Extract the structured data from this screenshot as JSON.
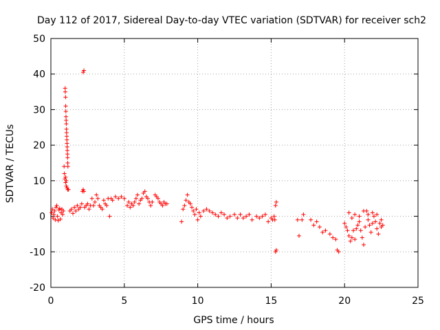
{
  "chart_data": {
    "type": "scatter",
    "title": "Day 112 of 2017, Sidereal Day-to-day VTEC variation (SDTVAR) for receiver sch2",
    "xlabel": "GPS time / hours",
    "ylabel": "SDTVAR / TECUs",
    "xlim": [
      0,
      25
    ],
    "ylim": [
      -20,
      50
    ],
    "xticks": [
      0,
      5,
      10,
      15,
      20,
      25
    ],
    "yticks": [
      -20,
      -10,
      0,
      10,
      20,
      30,
      40,
      50
    ],
    "xtick_labels": [
      "0",
      "5",
      "10",
      "15",
      "20",
      "25"
    ],
    "ytick_labels": [
      "-20",
      "-10",
      "0",
      "10",
      "20",
      "30",
      "40",
      "50"
    ],
    "grid": true,
    "marker": "plus",
    "series": [
      {
        "name": "SDTVAR",
        "color": "#ff0000",
        "points": [
          [
            0.05,
            1.0
          ],
          [
            0.1,
            2.0
          ],
          [
            0.15,
            -0.5
          ],
          [
            0.2,
            0.5
          ],
          [
            0.25,
            1.5
          ],
          [
            0.3,
            -1.0
          ],
          [
            0.35,
            2.5
          ],
          [
            0.4,
            3.0
          ],
          [
            0.45,
            0.0
          ],
          [
            0.5,
            -1.2
          ],
          [
            0.55,
            1.8
          ],
          [
            0.6,
            2.2
          ],
          [
            0.65,
            -0.8
          ],
          [
            0.7,
            1.0
          ],
          [
            0.75,
            2.0
          ],
          [
            0.8,
            0.5
          ],
          [
            0.85,
            1.5
          ],
          [
            0.9,
            14.0
          ],
          [
            0.92,
            12.0
          ],
          [
            0.95,
            10.5
          ],
          [
            0.97,
            36.0
          ],
          [
            0.98,
            35.0
          ],
          [
            1.0,
            33.5
          ],
          [
            1.01,
            31.0
          ],
          [
            1.02,
            29.5
          ],
          [
            1.03,
            28.0
          ],
          [
            1.04,
            27.0
          ],
          [
            1.05,
            26.0
          ],
          [
            1.06,
            24.5
          ],
          [
            1.07,
            23.5
          ],
          [
            1.08,
            22.5
          ],
          [
            1.09,
            21.5
          ],
          [
            1.1,
            20.5
          ],
          [
            1.11,
            19.5
          ],
          [
            1.12,
            18.5
          ],
          [
            1.13,
            17.5
          ],
          [
            1.14,
            16.5
          ],
          [
            1.15,
            15.0
          ],
          [
            1.16,
            14.0
          ],
          [
            1.0,
            9.5
          ],
          [
            1.05,
            8.5
          ],
          [
            1.1,
            8.0
          ],
          [
            1.15,
            7.5
          ],
          [
            1.2,
            7.5
          ],
          [
            1.0,
            11.0
          ],
          [
            1.05,
            10.0
          ],
          [
            1.3,
            1.5
          ],
          [
            1.4,
            2.0
          ],
          [
            1.5,
            0.8
          ],
          [
            1.6,
            2.5
          ],
          [
            1.7,
            1.5
          ],
          [
            1.8,
            3.0
          ],
          [
            1.9,
            2.0
          ],
          [
            2.0,
            2.5
          ],
          [
            2.1,
            3.5
          ],
          [
            2.15,
            7.0
          ],
          [
            2.2,
            7.5
          ],
          [
            2.25,
            7.0
          ],
          [
            2.2,
            40.5
          ],
          [
            2.25,
            41.0
          ],
          [
            2.3,
            2.5
          ],
          [
            2.4,
            3.0
          ],
          [
            2.5,
            3.5
          ],
          [
            2.6,
            2.0
          ],
          [
            2.7,
            3.0
          ],
          [
            2.8,
            5.0
          ],
          [
            2.9,
            3.0
          ],
          [
            3.0,
            4.0
          ],
          [
            3.1,
            6.0
          ],
          [
            3.2,
            5.0
          ],
          [
            3.3,
            3.0
          ],
          [
            3.4,
            2.5
          ],
          [
            3.5,
            2.0
          ],
          [
            3.6,
            4.5
          ],
          [
            3.7,
            3.5
          ],
          [
            3.8,
            3.0
          ],
          [
            3.9,
            5.0
          ],
          [
            4.0,
            0.0
          ],
          [
            4.1,
            5.0
          ],
          [
            4.2,
            4.5
          ],
          [
            4.4,
            5.5
          ],
          [
            4.6,
            5.0
          ],
          [
            4.8,
            5.5
          ],
          [
            5.0,
            5.0
          ],
          [
            5.2,
            3.0
          ],
          [
            5.3,
            4.0
          ],
          [
            5.4,
            2.5
          ],
          [
            5.5,
            3.5
          ],
          [
            5.6,
            3.0
          ],
          [
            5.7,
            4.0
          ],
          [
            5.8,
            5.0
          ],
          [
            5.9,
            6.0
          ],
          [
            6.0,
            3.5
          ],
          [
            6.1,
            4.5
          ],
          [
            6.2,
            5.0
          ],
          [
            6.3,
            6.5
          ],
          [
            6.4,
            7.0
          ],
          [
            6.5,
            5.5
          ],
          [
            6.6,
            5.0
          ],
          [
            6.7,
            4.0
          ],
          [
            6.8,
            3.0
          ],
          [
            6.9,
            4.0
          ],
          [
            7.1,
            6.0
          ],
          [
            7.2,
            5.5
          ],
          [
            7.3,
            5.0
          ],
          [
            7.4,
            4.0
          ],
          [
            7.5,
            3.5
          ],
          [
            7.6,
            3.0
          ],
          [
            7.7,
            4.0
          ],
          [
            7.8,
            3.5
          ],
          [
            7.9,
            3.5
          ],
          [
            8.9,
            -1.5
          ],
          [
            9.0,
            2.0
          ],
          [
            9.1,
            3.0
          ],
          [
            9.2,
            4.5
          ],
          [
            9.3,
            6.0
          ],
          [
            9.4,
            4.0
          ],
          [
            9.5,
            3.5
          ],
          [
            9.6,
            2.5
          ],
          [
            9.7,
            1.5
          ],
          [
            9.8,
            0.5
          ],
          [
            9.9,
            2.0
          ],
          [
            10.0,
            -1.0
          ],
          [
            10.1,
            1.0
          ],
          [
            10.2,
            0.0
          ],
          [
            10.4,
            1.5
          ],
          [
            10.6,
            2.0
          ],
          [
            10.8,
            1.5
          ],
          [
            11.0,
            1.0
          ],
          [
            11.2,
            0.5
          ],
          [
            11.4,
            0.0
          ],
          [
            11.6,
            1.0
          ],
          [
            11.8,
            0.5
          ],
          [
            12.0,
            -0.5
          ],
          [
            12.2,
            0.0
          ],
          [
            12.5,
            0.5
          ],
          [
            12.7,
            -0.5
          ],
          [
            12.9,
            0.5
          ],
          [
            13.1,
            -0.5
          ],
          [
            13.3,
            0.0
          ],
          [
            13.5,
            0.5
          ],
          [
            13.7,
            -1.0
          ],
          [
            14.0,
            0.0
          ],
          [
            14.2,
            -0.5
          ],
          [
            14.4,
            0.0
          ],
          [
            14.6,
            0.5
          ],
          [
            14.8,
            -1.5
          ],
          [
            15.0,
            -0.5
          ],
          [
            15.1,
            -1.0
          ],
          [
            15.2,
            0.0
          ],
          [
            15.25,
            -1.0
          ],
          [
            15.3,
            3.0
          ],
          [
            15.35,
            4.0
          ],
          [
            15.3,
            -10.0
          ],
          [
            15.35,
            -9.5
          ],
          [
            16.8,
            -1.0
          ],
          [
            16.9,
            -5.5
          ],
          [
            17.1,
            -1.0
          ],
          [
            17.2,
            0.5
          ],
          [
            17.7,
            -1.0
          ],
          [
            17.9,
            -2.5
          ],
          [
            18.1,
            -1.5
          ],
          [
            18.3,
            -3.0
          ],
          [
            18.5,
            -4.5
          ],
          [
            18.7,
            -4.0
          ],
          [
            19.0,
            -5.0
          ],
          [
            19.2,
            -6.0
          ],
          [
            19.4,
            -6.5
          ],
          [
            19.5,
            -9.5
          ],
          [
            19.6,
            -10.0
          ],
          [
            20.0,
            -2.0
          ],
          [
            20.1,
            -3.0
          ],
          [
            20.2,
            -4.0
          ],
          [
            20.3,
            -5.5
          ],
          [
            20.4,
            -7.0
          ],
          [
            20.5,
            -6.0
          ],
          [
            20.6,
            -4.0
          ],
          [
            20.7,
            -6.5
          ],
          [
            20.8,
            -3.5
          ],
          [
            20.9,
            -2.5
          ],
          [
            21.0,
            -1.5
          ],
          [
            21.1,
            -4.0
          ],
          [
            21.2,
            -6.0
          ],
          [
            21.3,
            -8.0
          ],
          [
            21.4,
            -3.0
          ],
          [
            21.5,
            1.5
          ],
          [
            21.6,
            0.5
          ],
          [
            21.7,
            -2.5
          ],
          [
            21.8,
            -4.5
          ],
          [
            21.9,
            -2.0
          ],
          [
            22.0,
            0.0
          ],
          [
            22.1,
            -1.5
          ],
          [
            22.2,
            -3.5
          ],
          [
            22.3,
            -5.0
          ],
          [
            22.4,
            -2.0
          ],
          [
            22.5,
            -3.0
          ],
          [
            22.6,
            -2.5
          ],
          [
            20.3,
            1.0
          ],
          [
            20.5,
            -0.5
          ],
          [
            20.7,
            0.5
          ],
          [
            21.0,
            0.0
          ],
          [
            21.3,
            1.5
          ],
          [
            21.6,
            -1.0
          ],
          [
            21.9,
            1.0
          ],
          [
            22.2,
            0.5
          ],
          [
            22.5,
            -1.0
          ]
        ]
      }
    ]
  }
}
